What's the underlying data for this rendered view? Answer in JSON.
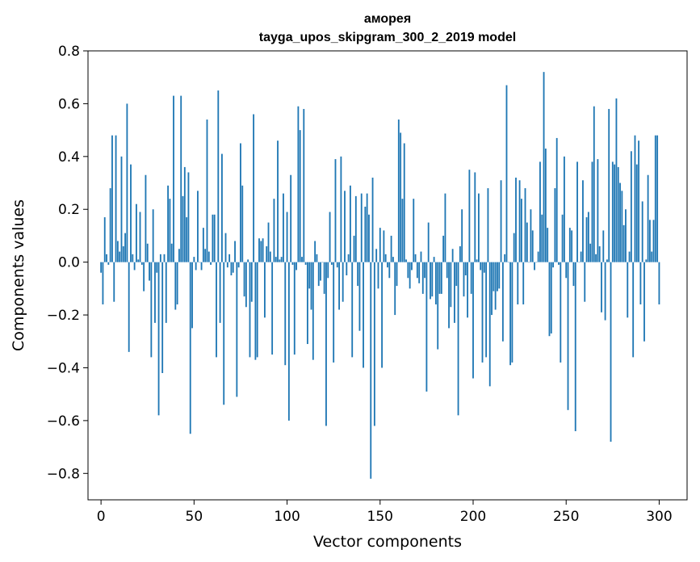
{
  "chart_data": {
    "type": "bar",
    "title": [
      "аморея",
      "tayga_upos_skipgram_300_2_2019 model"
    ],
    "xlabel": "Vector components",
    "ylabel": "Components values",
    "xlim": [
      -7,
      315
    ],
    "ylim": [
      -0.9,
      0.8
    ],
    "xticks": [
      0,
      50,
      100,
      150,
      200,
      250,
      300
    ],
    "xtick_labels": [
      "0",
      "50",
      "100",
      "150",
      "200",
      "250",
      "300"
    ],
    "yticks": [
      0.8,
      0.6,
      0.4,
      0.2,
      0.0,
      -0.2,
      -0.4,
      -0.6,
      -0.8
    ],
    "ytick_labels": [
      "0.8",
      "0.6",
      "0.4",
      "0.2",
      "0.0",
      "−0.2",
      "−0.4",
      "−0.6",
      "−0.8"
    ],
    "bar_color": "#1f77b4",
    "grid": false,
    "values": [
      -0.04,
      -0.16,
      0.17,
      0.03,
      -0.01,
      0.28,
      0.48,
      -0.15,
      0.48,
      0.08,
      0.04,
      0.4,
      0.06,
      0.11,
      0.6,
      -0.34,
      0.37,
      0.03,
      -0.03,
      0.22,
      0.01,
      0.19,
      -0.01,
      -0.11,
      0.33,
      0.07,
      -0.07,
      -0.36,
      0.2,
      -0.23,
      -0.04,
      -0.58,
      0.03,
      -0.42,
      0.03,
      -0.23,
      0.29,
      0.24,
      0.07,
      0.63,
      -0.18,
      -0.16,
      0.05,
      0.63,
      0.25,
      0.36,
      0.17,
      0.34,
      -0.65,
      -0.25,
      0.02,
      -0.03,
      0.27,
      0.0,
      -0.03,
      0.13,
      0.05,
      0.54,
      0.04,
      -0.01,
      0.18,
      0.18,
      -0.36,
      0.65,
      -0.23,
      0.41,
      -0.54,
      0.11,
      -0.02,
      0.03,
      -0.05,
      -0.04,
      0.08,
      -0.51,
      -0.02,
      0.45,
      0.29,
      -0.13,
      -0.17,
      0.01,
      -0.36,
      -0.15,
      0.56,
      -0.37,
      -0.36,
      0.09,
      0.08,
      0.09,
      -0.21,
      0.06,
      0.15,
      0.04,
      -0.35,
      0.24,
      0.02,
      0.46,
      0.01,
      0.02,
      0.26,
      -0.39,
      0.19,
      -0.6,
      0.33,
      -0.01,
      -0.35,
      -0.03,
      0.59,
      0.5,
      0.02,
      0.58,
      -0.01,
      -0.31,
      -0.1,
      -0.18,
      -0.37,
      0.08,
      0.03,
      -0.09,
      -0.07,
      0.0,
      -0.12,
      -0.62,
      -0.06,
      0.19,
      -0.01,
      -0.38,
      0.39,
      -0.02,
      -0.18,
      0.4,
      -0.15,
      0.27,
      -0.05,
      0.03,
      0.29,
      -0.36,
      0.1,
      0.25,
      -0.09,
      -0.26,
      0.26,
      -0.4,
      0.21,
      0.26,
      0.18,
      -0.82,
      0.32,
      -0.62,
      0.05,
      -0.1,
      0.13,
      -0.4,
      0.12,
      0.03,
      -0.02,
      -0.06,
      0.1,
      0.02,
      -0.2,
      -0.09,
      0.54,
      0.49,
      0.24,
      0.45,
      0.01,
      -0.06,
      -0.1,
      -0.03,
      0.24,
      0.03,
      -0.06,
      -0.08,
      0.04,
      -0.12,
      -0.06,
      -0.49,
      0.15,
      -0.14,
      -0.13,
      0.02,
      -0.16,
      -0.33,
      -0.12,
      -0.12,
      0.1,
      0.26,
      -0.06,
      -0.25,
      -0.17,
      0.05,
      -0.23,
      -0.09,
      -0.58,
      0.06,
      0.2,
      -0.13,
      -0.05,
      -0.21,
      0.35,
      -0.12,
      -0.44,
      0.34,
      0.01,
      0.26,
      -0.03,
      -0.38,
      -0.04,
      -0.36,
      0.28,
      -0.47,
      -0.2,
      -0.11,
      -0.18,
      -0.11,
      -0.1,
      0.31,
      -0.3,
      0.03,
      0.67,
      0.0,
      -0.39,
      -0.38,
      0.11,
      0.32,
      -0.16,
      0.31,
      0.24,
      -0.16,
      0.28,
      0.15,
      0.0,
      0.2,
      0.12,
      -0.03,
      0.0,
      0.04,
      0.38,
      0.18,
      0.72,
      0.43,
      0.13,
      -0.28,
      -0.27,
      -0.02,
      0.28,
      0.47,
      -0.01,
      -0.38,
      0.18,
      0.4,
      -0.06,
      -0.56,
      0.13,
      0.12,
      -0.09,
      -0.64,
      0.38,
      0.0,
      0.04,
      0.31,
      -0.15,
      0.17,
      0.19,
      0.07,
      0.38,
      0.59,
      0.03,
      0.39,
      0.06,
      -0.19,
      0.12,
      -0.22,
      0.01,
      0.58,
      -0.68,
      0.38,
      0.37,
      0.62,
      0.36,
      0.3,
      0.27,
      0.14,
      0.2,
      -0.21,
      0.04,
      0.42,
      -0.36,
      0.48,
      0.37,
      0.46,
      -0.16,
      0.23,
      -0.3,
      0.01,
      0.33,
      0.16,
      0.04,
      0.16,
      0.48,
      0.48,
      -0.16
    ]
  }
}
